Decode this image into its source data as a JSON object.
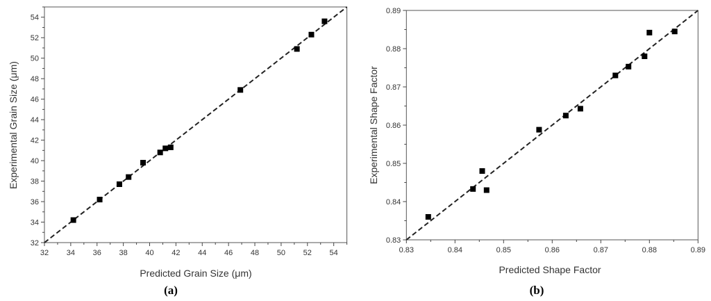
{
  "chart_data": [
    {
      "type": "scatter",
      "panel_label": "(a)",
      "xlabel": "Predicted Grain Size (μm)",
      "ylabel": "Experimental Grain Size (μm)",
      "xlim": [
        32,
        55
      ],
      "ylim": [
        32,
        55
      ],
      "xticks": [
        "32",
        "34",
        "36",
        "38",
        "40",
        "42",
        "44",
        "46",
        "48",
        "50",
        "52",
        "54"
      ],
      "yticks": [
        "32",
        "34",
        "36",
        "38",
        "40",
        "42",
        "44",
        "46",
        "48",
        "50",
        "52",
        "54"
      ],
      "tick_step": 2,
      "minor_step": 1,
      "grid": false,
      "reference_line": "y = x (dashed)",
      "marker": "filled square",
      "color": "#000000",
      "points": [
        [
          34.2,
          34.2
        ],
        [
          36.2,
          36.2
        ],
        [
          37.7,
          37.7
        ],
        [
          38.4,
          38.4
        ],
        [
          39.5,
          39.8
        ],
        [
          40.8,
          40.8
        ],
        [
          41.2,
          41.2
        ],
        [
          41.6,
          41.3
        ],
        [
          46.9,
          46.9
        ],
        [
          51.2,
          50.9
        ],
        [
          52.3,
          52.3
        ],
        [
          53.3,
          53.6
        ]
      ]
    },
    {
      "type": "scatter",
      "panel_label": "(b)",
      "xlabel": "Predicted Shape Factor",
      "ylabel": "Experimental Shape Factor",
      "xlim": [
        0.83,
        0.89
      ],
      "ylim": [
        0.83,
        0.89
      ],
      "xticks": [
        "0.83",
        "0.84",
        "0.85",
        "0.86",
        "0.87",
        "0.88",
        "0.89"
      ],
      "yticks": [
        "0.83",
        "0.84",
        "0.85",
        "0.86",
        "0.87",
        "0.88",
        "0.89"
      ],
      "tick_step": 0.01,
      "minor_step": 0.005,
      "grid": false,
      "reference_line": "y = x (dashed)",
      "marker": "filled square",
      "color": "#000000",
      "points": [
        [
          0.8345,
          0.836
        ],
        [
          0.8437,
          0.8433
        ],
        [
          0.8456,
          0.848
        ],
        [
          0.8465,
          0.843
        ],
        [
          0.8573,
          0.8588
        ],
        [
          0.8628,
          0.8625
        ],
        [
          0.8658,
          0.8643
        ],
        [
          0.873,
          0.873
        ],
        [
          0.8757,
          0.8753
        ],
        [
          0.879,
          0.878
        ],
        [
          0.88,
          0.8842
        ],
        [
          0.8852,
          0.8845
        ]
      ]
    }
  ]
}
